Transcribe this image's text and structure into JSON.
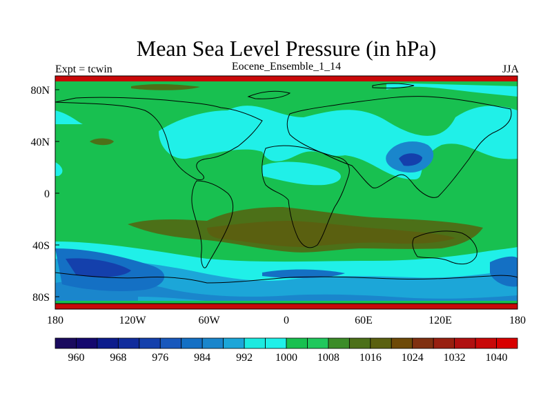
{
  "title": "Mean Sea Level Pressure (in hPa)",
  "left_label": "Expt = tcwin",
  "center_label": "Eocene_Ensemble_1_14",
  "right_label": "JJA",
  "lat_ticks": [
    "80N",
    "40N",
    "0",
    "40S",
    "80S"
  ],
  "lon_ticks": [
    "180",
    "120W",
    "60W",
    "0",
    "60E",
    "120E",
    "180"
  ],
  "colorbar": {
    "colors": [
      "#1a0a5e",
      "#14086e",
      "#0c1c8c",
      "#102c9c",
      "#1440ac",
      "#1858bc",
      "#1470c4",
      "#1a86cc",
      "#1ca6d8",
      "#1ceae0",
      "#20f0e8",
      "#18c050",
      "#20c85c",
      "#3c8c28",
      "#4c7018",
      "#5a6010",
      "#6e4a08",
      "#803010",
      "#982010",
      "#b01010",
      "#c80808",
      "#d80000"
    ],
    "labels": [
      "960",
      "968",
      "976",
      "984",
      "992",
      "1000",
      "1008",
      "1016",
      "1024",
      "1032",
      "1040"
    ]
  }
}
